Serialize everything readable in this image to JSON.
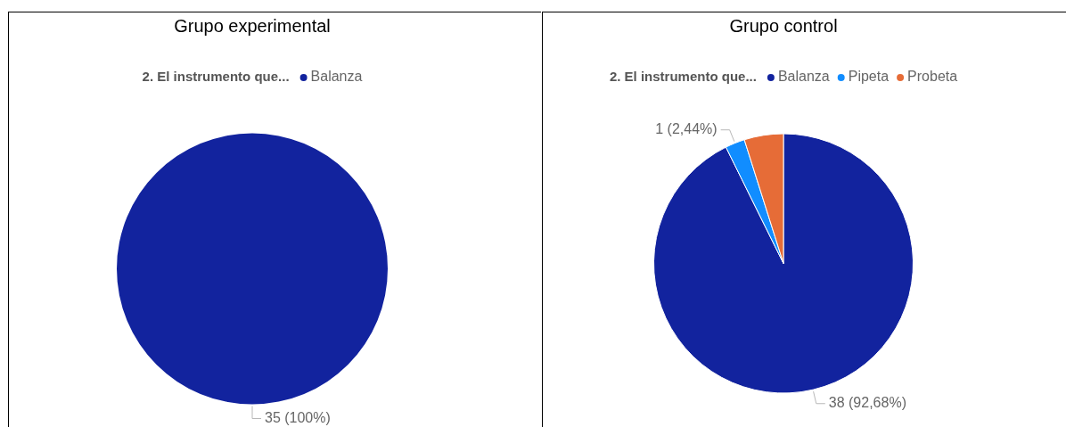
{
  "chart_data": [
    {
      "type": "pie",
      "title": "Grupo experimental",
      "legend_title": "2. El instrumento que...",
      "legend": "top",
      "categories": [
        "Balanza"
      ],
      "values": [
        35
      ],
      "colors": [
        "#12239e"
      ],
      "value_labels": [
        "35 (100%)"
      ]
    },
    {
      "type": "pie",
      "title": "Grupo control",
      "legend_title": "2. El instrumento que...",
      "legend": "top",
      "categories": [
        "Balanza",
        "Pipeta",
        "Probeta"
      ],
      "values": [
        38,
        1,
        2
      ],
      "colors": [
        "#12239e",
        "#118dff",
        "#e66c37"
      ],
      "value_labels": [
        "38 (92,68%)",
        "1 (2,44%)",
        null
      ]
    }
  ]
}
